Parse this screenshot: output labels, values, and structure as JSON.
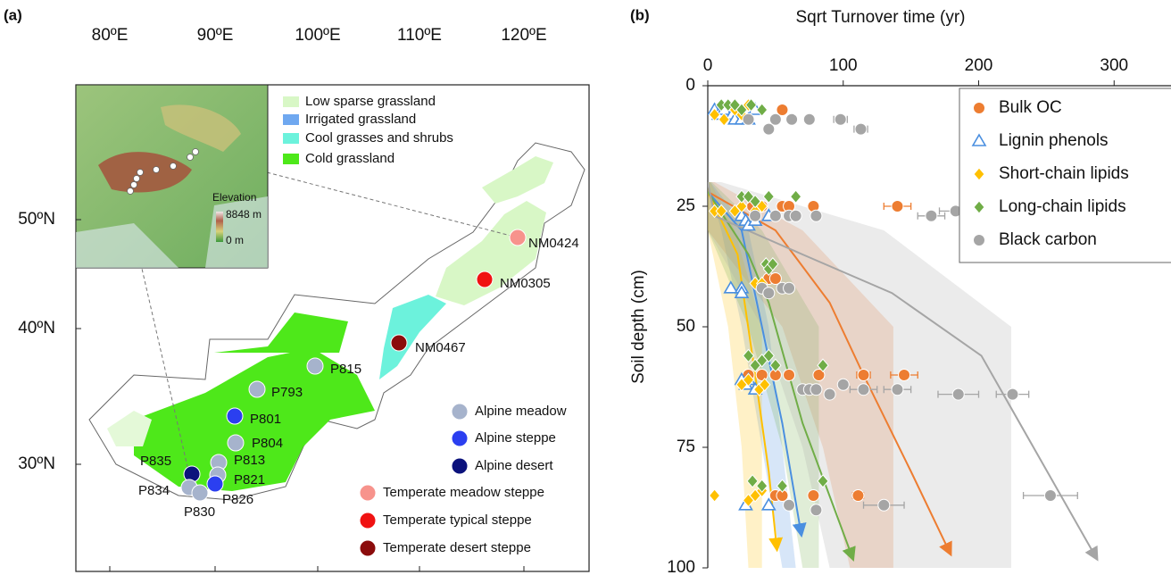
{
  "map": {
    "panel_label": "(a)",
    "lon_labels": [
      "80ºE",
      "90ºE",
      "100ºE",
      "110ºE",
      "120ºE"
    ],
    "lat_labels": [
      "50ºN",
      "40ºN",
      "30ºN"
    ],
    "legend_land": [
      {
        "label": "Low sparse grassland",
        "color": "#d8f7c6"
      },
      {
        "label": "Irrigated grassland",
        "color": "#6fa8f0"
      },
      {
        "label": "Cool grasses and shrubs",
        "color": "#6cf2dc"
      },
      {
        "label": "Cold grassland",
        "color": "#4ee81a"
      }
    ],
    "elevation": {
      "title": "Elevation",
      "max": "8848 m",
      "min": "0 m"
    },
    "legend_sites": [
      {
        "label": "Alpine meadow",
        "color": "#a6b3cc"
      },
      {
        "label": "Alpine steppe",
        "color": "#2b3ff0"
      },
      {
        "label": "Alpine desert",
        "color": "#0b127c"
      },
      {
        "label": "Temperate meadow steppe",
        "color": "#f7938c"
      },
      {
        "label": "Temperate typical steppe",
        "color": "#f01212"
      },
      {
        "label": "Temperate desert steppe",
        "color": "#8b0c0c"
      }
    ],
    "sites": [
      {
        "label": "NM0424",
        "type": 3
      },
      {
        "label": "NM0305",
        "type": 4
      },
      {
        "label": "NM0467",
        "type": 5
      },
      {
        "label": "P815",
        "type": 0
      },
      {
        "label": "P793",
        "type": 0
      },
      {
        "label": "P801",
        "type": 1
      },
      {
        "label": "P804",
        "type": 0
      },
      {
        "label": "P813",
        "type": 0
      },
      {
        "label": "P821",
        "type": 0
      },
      {
        "label": "P826",
        "type": 1
      },
      {
        "label": "P835",
        "type": 2
      },
      {
        "label": "P834",
        "type": 0
      },
      {
        "label": "P830",
        "type": 0
      }
    ]
  },
  "chart_data": {
    "type": "scatter",
    "panel_label": "(b)",
    "x_label": "Sqrt Turnover time (yr)",
    "y_label": "Soil depth (cm)",
    "xlim": [
      0,
      342
    ],
    "xticks": [
      0,
      100,
      200,
      300
    ],
    "ylim": [
      0,
      100
    ],
    "yticks": [
      0,
      25,
      50,
      75,
      100
    ],
    "x_axis_position": "top",
    "y_inverted": true,
    "legend_position": "upper right",
    "series": [
      {
        "name": "Bulk OC",
        "color": "#ed7d31",
        "marker": "circle",
        "x": [
          55,
          33,
          40,
          55,
          60,
          78,
          140,
          45,
          50,
          30,
          40,
          50,
          60,
          82,
          115,
          145,
          50,
          55,
          78,
          111
        ],
        "y": [
          5,
          25,
          25,
          25,
          25,
          25,
          25,
          40,
          40,
          60,
          60,
          60,
          60,
          60,
          60,
          60,
          85,
          85,
          85,
          85
        ],
        "xerr": [
          null,
          null,
          null,
          null,
          null,
          null,
          10,
          null,
          null,
          null,
          null,
          null,
          null,
          null,
          5,
          10,
          null,
          null,
          null,
          4
        ],
        "fit": {
          "x": [
            0,
            50,
            90,
            115,
            150,
            179
          ],
          "y": [
            22,
            30,
            45,
            60,
            80,
            97
          ]
        },
        "band": {
          "y": [
            20,
            30,
            50,
            75,
            100
          ],
          "x_low": [
            0,
            0,
            55,
            85,
            105
          ],
          "x_high": [
            5,
            70,
            137,
            137,
            137
          ]
        }
      },
      {
        "name": "Lignin phenols",
        "color": "#4a8fe0",
        "marker": "triangle",
        "x": [
          5,
          8,
          12,
          18,
          20,
          25,
          30,
          35,
          25,
          28,
          30,
          35,
          45,
          17,
          25,
          25,
          25,
          28,
          30,
          35,
          28,
          45
        ],
        "y": [
          5,
          6,
          5,
          6,
          7,
          7,
          7,
          5,
          27,
          28,
          29,
          28,
          27,
          42,
          42,
          43,
          61,
          62,
          61,
          63,
          87,
          87
        ],
        "fit": {
          "x": [
            0,
            25,
            40,
            55,
            69
          ],
          "y": [
            22,
            30,
            50,
            70,
            93
          ]
        },
        "band": {
          "y": [
            20,
            30,
            50,
            75,
            100
          ],
          "x_low": [
            0,
            10,
            25,
            40,
            55
          ],
          "x_high": [
            2,
            30,
            45,
            55,
            65
          ]
        }
      },
      {
        "name": "Short-chain lipids",
        "color": "#ffc000",
        "marker": "diamond",
        "x": [
          5,
          12,
          20,
          25,
          30,
          5,
          10,
          20,
          25,
          35,
          40,
          35,
          40,
          25,
          30,
          38,
          42,
          5,
          30,
          35,
          40
        ],
        "y": [
          6,
          7,
          5,
          6,
          4,
          26,
          26,
          26,
          25,
          26,
          25,
          41,
          41,
          62,
          61,
          63,
          62,
          85,
          86,
          85,
          84
        ],
        "fit": {
          "x": [
            0,
            22,
            35,
            45,
            51
          ],
          "y": [
            22,
            35,
            60,
            80,
            96
          ]
        },
        "band": {
          "y": [
            20,
            30,
            50,
            75,
            100
          ],
          "x_low": [
            0,
            0,
            15,
            25,
            30
          ],
          "x_high": [
            2,
            20,
            40,
            40,
            40
          ]
        }
      },
      {
        "name": "Long-chain lipids",
        "color": "#70ad47",
        "marker": "diamond",
        "x": [
          10,
          15,
          20,
          25,
          32,
          40,
          25,
          30,
          35,
          45,
          65,
          43,
          45,
          48,
          30,
          35,
          40,
          45,
          50,
          85,
          33,
          40,
          55,
          85
        ],
        "y": [
          4,
          4,
          4,
          5,
          4,
          5,
          23,
          23,
          24,
          23,
          23,
          37,
          38,
          37,
          56,
          58,
          57,
          56,
          58,
          58,
          82,
          83,
          83,
          82
        ],
        "fit": {
          "x": [
            0,
            30,
            45,
            70,
            107
          ],
          "y": [
            22,
            35,
            45,
            70,
            98
          ]
        },
        "band": {
          "y": [
            20,
            30,
            50,
            75,
            100
          ],
          "x_low": [
            0,
            0,
            30,
            55,
            70
          ],
          "x_high": [
            3,
            40,
            82,
            82,
            82
          ]
        }
      },
      {
        "name": "Black carbon",
        "color": "#a5a5a5",
        "marker": "circle",
        "x": [
          30,
          50,
          62,
          75,
          98,
          113,
          45,
          35,
          50,
          60,
          65,
          80,
          165,
          183,
          40,
          45,
          55,
          60,
          70,
          75,
          80,
          90,
          100,
          115,
          140,
          185,
          225,
          60,
          80,
          130,
          253
        ],
        "y": [
          7,
          7,
          7,
          7,
          7,
          9,
          9,
          27,
          27,
          27,
          27,
          27,
          27,
          26,
          42,
          43,
          42,
          42,
          63,
          63,
          63,
          64,
          62,
          63,
          63,
          64,
          64,
          87,
          88,
          87,
          85
        ],
        "xerr": [
          null,
          null,
          null,
          null,
          5,
          5,
          null,
          null,
          null,
          null,
          null,
          null,
          10,
          12,
          null,
          null,
          null,
          null,
          null,
          null,
          null,
          null,
          null,
          10,
          10,
          15,
          12,
          null,
          null,
          15,
          20
        ],
        "fit": {
          "x": [
            0,
            5,
            70,
            136,
            202,
            287
          ],
          "y": [
            20,
            27,
            35,
            43,
            56,
            98
          ]
        },
        "band": {
          "y": [
            20,
            30,
            50,
            75,
            100
          ],
          "x_low": [
            0,
            0,
            40,
            70,
            90
          ],
          "x_high": [
            10,
            130,
            224,
            224,
            224
          ]
        }
      }
    ]
  }
}
